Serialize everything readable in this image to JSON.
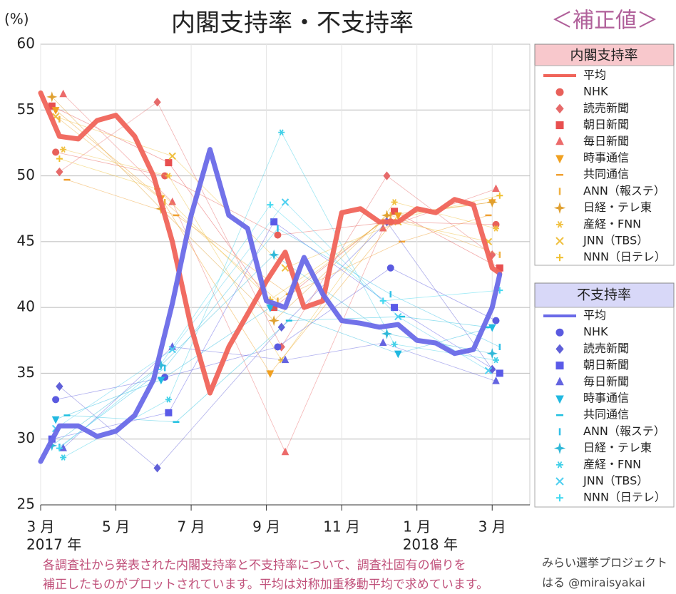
{
  "chart_data": {
    "type": "line",
    "title": "内閣支持率・不支持率",
    "subtitle": "＜補正値＞",
    "y_label": "(%)",
    "year_labels": [
      {
        "x": 0,
        "label": "2017 年"
      },
      {
        "x": 10,
        "label": "2018 年"
      }
    ],
    "footnote": [
      "各調査社から発表された内閣支持率と不支持率について、調査社固有の偏りを",
      "補正したものがプロットされています。平均は対称加重移動平均で求めています。"
    ],
    "credit": [
      "みらい選挙プロジェクト",
      "はる @miraisyakai"
    ],
    "legend_titles": [
      "内閣支持率",
      "不支持率"
    ],
    "xlim": [
      0,
      13
    ],
    "xticks": [
      {
        "value": 0,
        "label": "3 月"
      },
      {
        "value": 2,
        "label": "5 月"
      },
      {
        "value": 4,
        "label": "7 月"
      },
      {
        "value": 6,
        "label": "9 月"
      },
      {
        "value": 8,
        "label": "11 月"
      },
      {
        "value": 10,
        "label": "1 月"
      },
      {
        "value": 12,
        "label": "3 月"
      }
    ],
    "ylim": [
      25,
      60
    ],
    "yticks": [
      25,
      30,
      35,
      40,
      45,
      50,
      55,
      60
    ],
    "grid": true,
    "series": [
      {
        "name": "平均",
        "color": "#f0645a",
        "marker": "line",
        "x": [
          0,
          0.5,
          1,
          1.5,
          2,
          2.5,
          3,
          3.5,
          4,
          4.5,
          5,
          5.5,
          6,
          6.5,
          7,
          7.5,
          8,
          8.5,
          9,
          9.5,
          10,
          10.5,
          11,
          11.5,
          12,
          12.2
        ],
        "values": [
          56.3,
          53,
          52.8,
          54.2,
          54.6,
          53,
          50,
          45,
          38.5,
          33.5,
          37,
          39.5,
          42,
          44.2,
          40,
          40.5,
          47.2,
          47.5,
          46.5,
          46.5,
          47.5,
          47.2,
          48.2,
          47.8,
          43,
          42.6
        ]
      },
      {
        "name": "NHK",
        "color": "#e8605a",
        "marker": "circle",
        "x": [
          0.4,
          3.3,
          6.3,
          9.3,
          12.1
        ],
        "values": [
          51.8,
          50,
          45.5,
          46.5,
          46.3
        ]
      },
      {
        "name": "読売新聞",
        "color": "#e66a6a",
        "marker": "diamond",
        "x": [
          0.5,
          3.1,
          6.4,
          9.2,
          12
        ],
        "values": [
          50.3,
          55.6,
          37,
          50,
          44
        ]
      },
      {
        "name": "朝日新聞",
        "color": "#e84f4f",
        "marker": "square",
        "x": [
          0.3,
          3.4,
          6.2,
          9.4,
          12.2
        ],
        "values": [
          55.3,
          51,
          40,
          47.3,
          43
        ]
      },
      {
        "name": "毎日新聞",
        "color": "#ec6b6b",
        "marker": "triangle",
        "x": [
          0.6,
          3.5,
          6.5,
          9.1,
          12.1
        ],
        "values": [
          56.2,
          48,
          29,
          46,
          49
        ]
      },
      {
        "name": "時事通信",
        "color": "#f0a020",
        "marker": "tridown",
        "x": [
          0.4,
          3.2,
          6.1,
          9.5,
          12
        ],
        "values": [
          55,
          48.3,
          35,
          47,
          48
        ]
      },
      {
        "name": "共同通信",
        "color": "#f0a030",
        "marker": "dash",
        "x": [
          0.7,
          3.6,
          6.6,
          9.6,
          11.9
        ],
        "values": [
          49.7,
          47,
          41,
          45,
          47
        ]
      },
      {
        "name": "ANN（報ステ）",
        "color": "#f0b040",
        "marker": "vbar",
        "x": [
          0.5,
          3.3,
          6.3,
          9.3,
          12.2
        ],
        "values": [
          54.3,
          48,
          40.5,
          47,
          44
        ]
      },
      {
        "name": "日経・テレ東",
        "color": "#e0a030",
        "marker": "star4",
        "x": [
          0.3,
          3.2,
          6.2,
          9.2,
          12
        ],
        "values": [
          56,
          47.5,
          39,
          47,
          48
        ]
      },
      {
        "name": "産経・FNN",
        "color": "#f0c040",
        "marker": "asterisk",
        "x": [
          0.6,
          3.4,
          6.4,
          9.4,
          12.1
        ],
        "values": [
          52,
          50,
          36,
          48,
          46
        ]
      },
      {
        "name": "JNN（TBS）",
        "color": "#f0c040",
        "marker": "cross",
        "x": [
          0.4,
          3.5,
          6.5,
          9.5,
          11.9
        ],
        "values": [
          54.5,
          51.5,
          43,
          46.5,
          45
        ]
      },
      {
        "name": "NNN（日テレ）",
        "color": "#f0c030",
        "marker": "plus",
        "x": [
          0.5,
          3.1,
          6.1,
          9.1,
          12.2
        ],
        "values": [
          51.3,
          49,
          40.6,
          46.5,
          48.5
        ]
      },
      {
        "name": "平均",
        "color": "#6a6ae8",
        "marker": "line",
        "x": [
          0,
          0.5,
          1,
          1.5,
          2,
          2.5,
          3,
          3.5,
          4,
          4.5,
          5,
          5.5,
          6,
          6.5,
          7,
          7.5,
          8,
          8.5,
          9,
          9.5,
          10,
          10.5,
          11,
          11.5,
          12,
          12.2
        ],
        "values": [
          28.3,
          31,
          31,
          30.2,
          30.6,
          31.8,
          34.5,
          40.3,
          47,
          52,
          47,
          46,
          40.5,
          40,
          43.8,
          41,
          39,
          38.8,
          38.5,
          38.7,
          37.5,
          37.3,
          36.5,
          36.8,
          40,
          42.5
        ]
      },
      {
        "name": "NHK",
        "color": "#5a5ae0",
        "marker": "circle",
        "x": [
          0.4,
          3.3,
          6.3,
          9.3,
          12.1
        ],
        "values": [
          33,
          34.7,
          37,
          43,
          39
        ]
      },
      {
        "name": "読売新聞",
        "color": "#6060d8",
        "marker": "diamond",
        "x": [
          0.5,
          3.1,
          6.4,
          9.2,
          12
        ],
        "values": [
          34,
          27.8,
          38.5,
          46.5,
          35.3
        ]
      },
      {
        "name": "朝日新聞",
        "color": "#5a5ae8",
        "marker": "square",
        "x": [
          0.3,
          3.4,
          6.2,
          9.4,
          12.2
        ],
        "values": [
          30,
          32,
          46.5,
          40,
          35
        ]
      },
      {
        "name": "毎日新聞",
        "color": "#6464e0",
        "marker": "triangle",
        "x": [
          0.6,
          3.5,
          6.5,
          9.1,
          12.1
        ],
        "values": [
          29.3,
          37,
          36,
          37.3,
          34.4
        ]
      },
      {
        "name": "時事通信",
        "color": "#20b8e0",
        "marker": "tridown",
        "x": [
          0.4,
          3.2,
          6.1,
          9.5,
          12
        ],
        "values": [
          31.5,
          34.5,
          40,
          36.5,
          38.5
        ]
      },
      {
        "name": "共同通信",
        "color": "#20c0e0",
        "marker": "dash",
        "x": [
          0.7,
          3.6,
          6.6,
          9.6,
          11.9
        ],
        "values": [
          31.8,
          31.3,
          39,
          39.3,
          38.5
        ]
      },
      {
        "name": "ANN（報ステ）",
        "color": "#30c0e8",
        "marker": "vbar",
        "x": [
          0.5,
          3.3,
          6.3,
          9.3,
          12.2
        ],
        "values": [
          29.4,
          35.4,
          46,
          41,
          37
        ]
      },
      {
        "name": "日経・テレ東",
        "color": "#30b8d8",
        "marker": "star4",
        "x": [
          0.3,
          3.2,
          6.2,
          9.2,
          12
        ],
        "values": [
          29.5,
          35.6,
          44,
          38,
          36.5
        ]
      },
      {
        "name": "産経・FNN",
        "color": "#40d0e8",
        "marker": "asterisk",
        "x": [
          0.6,
          3.4,
          6.4,
          9.4,
          12.1
        ],
        "values": [
          28.6,
          33,
          53.3,
          37.2,
          36
        ]
      },
      {
        "name": "JNN（TBS）",
        "color": "#50d0f0",
        "marker": "cross",
        "x": [
          0.4,
          3.5,
          6.5,
          9.5,
          11.9
        ],
        "values": [
          30.8,
          36.8,
          48,
          39.3,
          35.2
        ]
      },
      {
        "name": "NNN（日テレ）",
        "color": "#40d8f0",
        "marker": "plus",
        "x": [
          0.5,
          3.1,
          6.1,
          9.1,
          12.2
        ],
        "values": [
          29.3,
          35.3,
          47.8,
          40.5,
          41.3
        ]
      }
    ]
  }
}
